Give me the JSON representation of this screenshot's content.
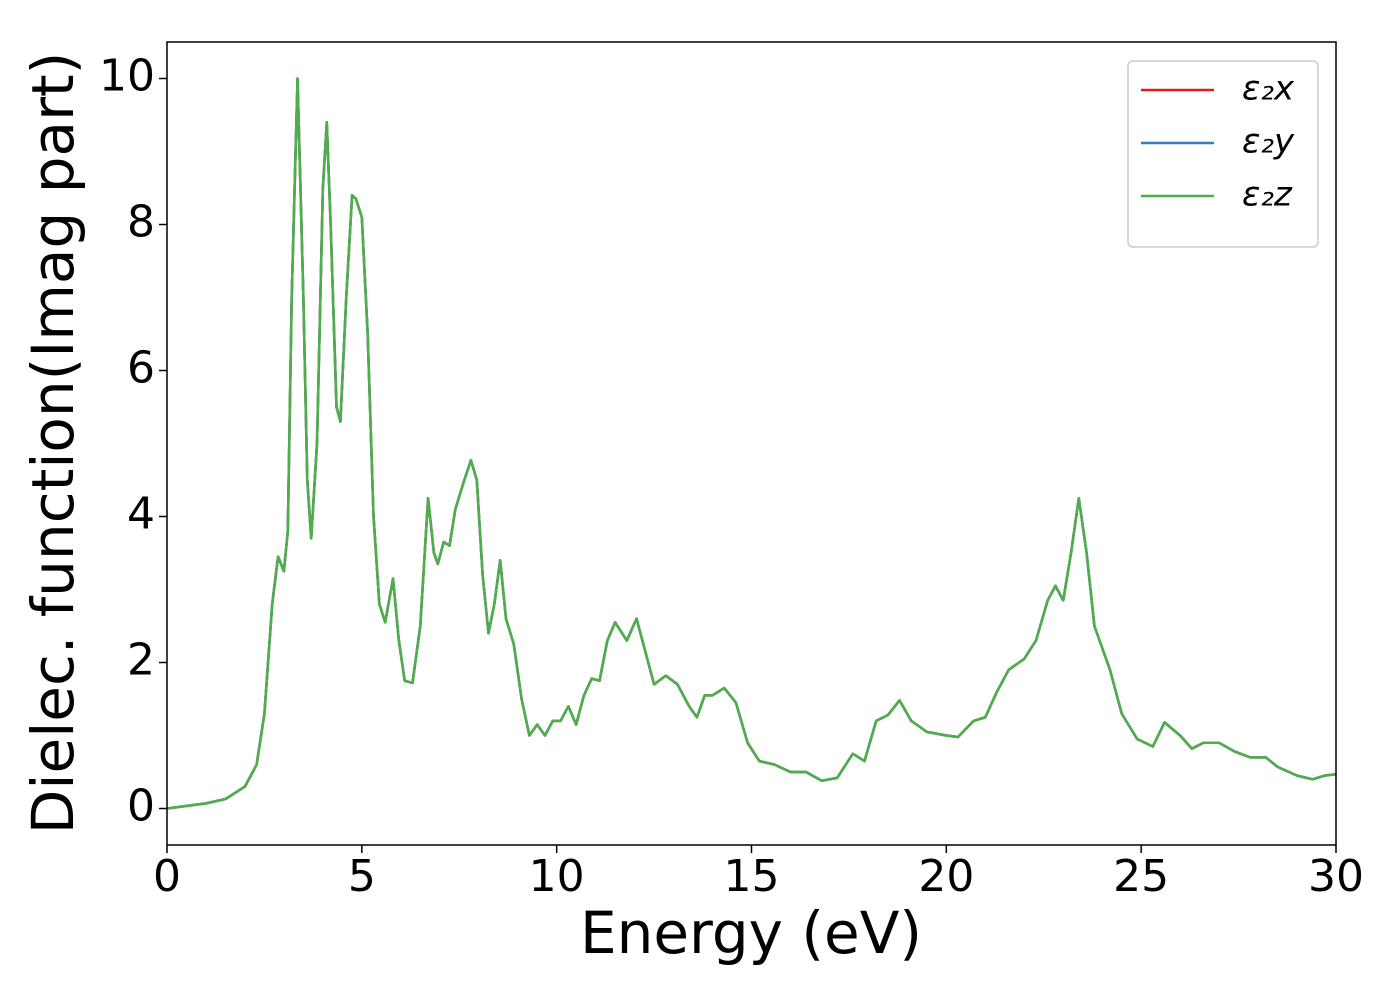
{
  "chart_data": {
    "type": "line",
    "xlabel": "Energy (eV)",
    "ylabel": "Dielec. function(Imag part)",
    "x": [
      0,
      1,
      1.5,
      2,
      2.3,
      2.5,
      2.7,
      2.85,
      3.0,
      3.1,
      3.2,
      3.35,
      3.5,
      3.6,
      3.7,
      3.85,
      4.0,
      4.1,
      4.2,
      4.35,
      4.45,
      4.6,
      4.75,
      4.85,
      5.0,
      5.15,
      5.3,
      5.45,
      5.6,
      5.8,
      5.95,
      6.1,
      6.3,
      6.5,
      6.7,
      6.85,
      6.95,
      7.1,
      7.25,
      7.4,
      7.6,
      7.8,
      7.95,
      8.1,
      8.25,
      8.4,
      8.55,
      8.7,
      8.9,
      9.1,
      9.3,
      9.5,
      9.7,
      9.9,
      10.1,
      10.3,
      10.5,
      10.7,
      10.9,
      11.1,
      11.3,
      11.5,
      11.8,
      12.05,
      12.3,
      12.5,
      12.8,
      13.1,
      13.4,
      13.6,
      13.8,
      14.0,
      14.3,
      14.6,
      14.9,
      15.2,
      15.6,
      16.0,
      16.4,
      16.8,
      17.2,
      17.6,
      17.9,
      18.2,
      18.5,
      18.8,
      19.1,
      19.5,
      20.0,
      20.3,
      20.7,
      21.0,
      21.3,
      21.6,
      22.0,
      22.3,
      22.6,
      22.8,
      23.0,
      23.2,
      23.4,
      23.6,
      23.8,
      24.2,
      24.5,
      24.9,
      25.3,
      25.6,
      26.0,
      26.3,
      26.6,
      27.0,
      27.4,
      27.8,
      28.2,
      28.5,
      29.0,
      29.4,
      29.7,
      30.0
    ],
    "series": [
      {
        "name": "ε₂x",
        "color": "#e41a1c",
        "values": [
          0,
          0.07,
          0.13,
          0.3,
          0.6,
          1.3,
          2.8,
          3.45,
          3.25,
          3.8,
          7,
          10.0,
          7,
          4.5,
          3.7,
          5,
          8.5,
          9.4,
          8,
          5.5,
          5.3,
          7,
          8.4,
          8.35,
          8.1,
          6.5,
          4,
          2.8,
          2.55,
          3.15,
          2.3,
          1.75,
          1.72,
          2.5,
          4.25,
          3.5,
          3.35,
          3.65,
          3.6,
          4.1,
          4.45,
          4.77,
          4.5,
          3.2,
          2.4,
          2.8,
          3.4,
          2.6,
          2.25,
          1.5,
          1.0,
          1.15,
          1.0,
          1.2,
          1.2,
          1.4,
          1.15,
          1.55,
          1.78,
          1.75,
          2.3,
          2.55,
          2.3,
          2.6,
          2.1,
          1.7,
          1.82,
          1.7,
          1.4,
          1.25,
          1.55,
          1.55,
          1.65,
          1.45,
          0.9,
          0.65,
          0.6,
          0.5,
          0.5,
          0.38,
          0.42,
          0.75,
          0.65,
          1.2,
          1.28,
          1.48,
          1.2,
          1.05,
          1.0,
          0.98,
          1.2,
          1.25,
          1.6,
          1.9,
          2.05,
          2.3,
          2.85,
          3.05,
          2.85,
          3.5,
          4.25,
          3.5,
          2.5,
          1.9,
          1.3,
          0.95,
          0.85,
          1.18,
          1.0,
          0.82,
          0.9,
          0.9,
          0.78,
          0.7,
          0.7,
          0.57,
          0.45,
          0.4,
          0.45,
          0.47
        ]
      },
      {
        "name": "ε₂y",
        "color": "#377eb8",
        "values": [
          0,
          0.07,
          0.13,
          0.3,
          0.6,
          1.3,
          2.8,
          3.45,
          3.25,
          3.8,
          7,
          10.0,
          7,
          4.5,
          3.7,
          5,
          8.5,
          9.4,
          8,
          5.5,
          5.3,
          7,
          8.4,
          8.35,
          8.1,
          6.5,
          4,
          2.8,
          2.55,
          3.15,
          2.3,
          1.75,
          1.72,
          2.5,
          4.25,
          3.5,
          3.35,
          3.65,
          3.6,
          4.1,
          4.45,
          4.77,
          4.5,
          3.2,
          2.4,
          2.8,
          3.4,
          2.6,
          2.25,
          1.5,
          1.0,
          1.15,
          1.0,
          1.2,
          1.2,
          1.4,
          1.15,
          1.55,
          1.78,
          1.75,
          2.3,
          2.55,
          2.3,
          2.6,
          2.1,
          1.7,
          1.82,
          1.7,
          1.4,
          1.25,
          1.55,
          1.55,
          1.65,
          1.45,
          0.9,
          0.65,
          0.6,
          0.5,
          0.5,
          0.38,
          0.42,
          0.75,
          0.65,
          1.2,
          1.28,
          1.48,
          1.2,
          1.05,
          1.0,
          0.98,
          1.2,
          1.25,
          1.6,
          1.9,
          2.05,
          2.3,
          2.85,
          3.05,
          2.85,
          3.5,
          4.25,
          3.5,
          2.5,
          1.9,
          1.3,
          0.95,
          0.85,
          1.18,
          1.0,
          0.82,
          0.9,
          0.9,
          0.78,
          0.7,
          0.7,
          0.57,
          0.45,
          0.4,
          0.45,
          0.47
        ]
      },
      {
        "name": "ε₂z",
        "color": "#4daf4a",
        "values": [
          0,
          0.07,
          0.13,
          0.3,
          0.6,
          1.3,
          2.8,
          3.45,
          3.25,
          3.8,
          7,
          10.0,
          7,
          4.5,
          3.7,
          5,
          8.5,
          9.4,
          8,
          5.5,
          5.3,
          7,
          8.4,
          8.35,
          8.1,
          6.5,
          4,
          2.8,
          2.55,
          3.15,
          2.3,
          1.75,
          1.72,
          2.5,
          4.25,
          3.5,
          3.35,
          3.65,
          3.6,
          4.1,
          4.45,
          4.77,
          4.5,
          3.2,
          2.4,
          2.8,
          3.4,
          2.6,
          2.25,
          1.5,
          1.0,
          1.15,
          1.0,
          1.2,
          1.2,
          1.4,
          1.15,
          1.55,
          1.78,
          1.75,
          2.3,
          2.55,
          2.3,
          2.6,
          2.1,
          1.7,
          1.82,
          1.7,
          1.4,
          1.25,
          1.55,
          1.55,
          1.65,
          1.45,
          0.9,
          0.65,
          0.6,
          0.5,
          0.5,
          0.38,
          0.42,
          0.75,
          0.65,
          1.2,
          1.28,
          1.48,
          1.2,
          1.05,
          1.0,
          0.98,
          1.2,
          1.25,
          1.6,
          1.9,
          2.05,
          2.3,
          2.85,
          3.05,
          2.85,
          3.5,
          4.25,
          3.5,
          2.5,
          1.9,
          1.3,
          0.95,
          0.85,
          1.18,
          1.0,
          0.82,
          0.9,
          0.9,
          0.78,
          0.7,
          0.7,
          0.57,
          0.45,
          0.4,
          0.45,
          0.47
        ]
      }
    ],
    "xlim": [
      0,
      30
    ],
    "xticks": [
      0,
      5,
      10,
      15,
      20,
      25,
      30
    ],
    "ylim": [
      -0.5,
      10.5
    ],
    "yticks": [
      0,
      2,
      4,
      6,
      8,
      10
    ],
    "legend": "upper right",
    "grid": false
  }
}
